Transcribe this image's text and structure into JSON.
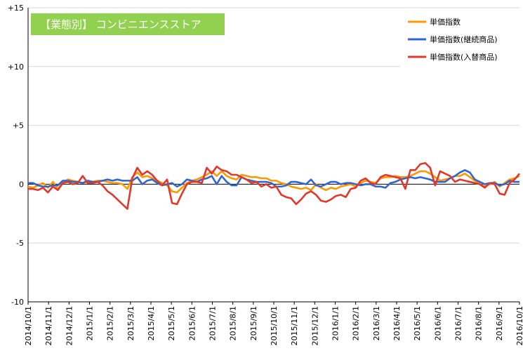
{
  "chart_data": {
    "type": "line",
    "title": "【業態別】 コンビニエンスストア",
    "title_bg": "#92d050",
    "xlabel": "",
    "ylabel": "",
    "ylim": [
      -10,
      15
    ],
    "yticks": [
      -10,
      -5,
      0,
      5,
      10,
      15
    ],
    "yticklabels": [
      "-10",
      "-5",
      "0",
      "+5",
      "+10",
      "+15"
    ],
    "grid": true,
    "legend_position": "top-right",
    "xticklabels": [
      "2014/10/1",
      "2014/11/1",
      "2014/12/1",
      "2015/1/1",
      "2015/2/1",
      "2015/3/1",
      "2015/4/1",
      "2015/5/1",
      "2015/6/1",
      "2015/7/1",
      "2015/8/1",
      "2015/9/1",
      "2015/10/1",
      "2015/11/1",
      "2015/12/1",
      "2016/1/1",
      "2016/2/1",
      "2016/3/1",
      "2016/4/1",
      "2016/5/1",
      "2016/6/1",
      "2016/7/1",
      "2016/8/1",
      "2016/9/1",
      "2016/10/1"
    ],
    "series": [
      {
        "name": "単価指数",
        "color": "#ff9900",
        "values": [
          -0.2,
          -0.3,
          -0.1,
          0.1,
          -0.3,
          0.2,
          -0.4,
          0.1,
          0.4,
          0.3,
          0.2,
          0.1,
          0.2,
          0.2,
          0.3,
          0.3,
          0.2,
          0.1,
          0.1,
          0.0,
          -0.4,
          0.6,
          1.0,
          0.6,
          0.7,
          0.5,
          0.3,
          0.1,
          -0.1,
          -0.6,
          -0.7,
          -0.3,
          0.1,
          0.3,
          0.4,
          0.6,
          0.8,
          1.1,
          0.7,
          1.1,
          0.7,
          0.5,
          0.4,
          0.8,
          0.7,
          0.6,
          0.6,
          0.5,
          0.5,
          0.3,
          0.3,
          0.1,
          0.0,
          -0.2,
          -0.3,
          -0.4,
          -0.3,
          -0.5,
          0.0,
          -0.3,
          -0.5,
          -0.3,
          -0.4,
          -0.2,
          -0.1,
          0.0,
          -0.2,
          0.1,
          0.3,
          0.2,
          0.1,
          0.5,
          0.6,
          0.6,
          0.7,
          0.6,
          0.6,
          0.7,
          0.9,
          1.1,
          1.1,
          0.9,
          0.6,
          0.3,
          0.4,
          0.5,
          0.7,
          0.7,
          0.9,
          0.6,
          0.3,
          0.0,
          -0.2,
          0.0,
          0.2,
          -0.2,
          0.1,
          0.4,
          0.5,
          0.7
        ]
      },
      {
        "name": "単価指数(継続商品)",
        "color": "#3366cc",
        "values": [
          0.1,
          0.1,
          -0.1,
          -0.2,
          -0.2,
          -0.1,
          -0.1,
          0.3,
          0.3,
          0.2,
          0.2,
          0.1,
          0.3,
          0.2,
          0.2,
          0.3,
          0.4,
          0.3,
          0.4,
          0.3,
          0.3,
          0.3,
          0.6,
          0.0,
          0.3,
          0.4,
          0.1,
          -0.1,
          0.0,
          0.1,
          -0.2,
          0.0,
          0.4,
          0.3,
          0.2,
          0.4,
          0.5,
          0.7,
          0.0,
          0.7,
          0.2,
          -0.1,
          -0.1,
          0.6,
          0.4,
          0.3,
          0.2,
          0.2,
          0.2,
          0.1,
          -0.2,
          -0.2,
          -0.1,
          0.2,
          0.2,
          0.1,
          0.0,
          0.4,
          -0.1,
          -0.2,
          0.0,
          0.2,
          0.2,
          0.0,
          0.1,
          0.1,
          0.0,
          -0.1,
          0.0,
          0.0,
          -0.2,
          -0.2,
          -0.3,
          0.1,
          0.2,
          0.4,
          0.5,
          0.6,
          0.5,
          0.6,
          0.5,
          0.4,
          0.2,
          0.2,
          0.2,
          0.5,
          0.7,
          1.0,
          1.2,
          1.0,
          0.4,
          0.2,
          0.0,
          0.1,
          0.1,
          -0.1,
          0.0,
          0.3,
          0.2,
          0.2
        ]
      },
      {
        "name": "単価指数(入替商品)",
        "color": "#e0382c",
        "values": [
          -0.4,
          -0.4,
          -0.5,
          -0.3,
          -0.7,
          -0.2,
          -0.5,
          0.1,
          0.2,
          0.0,
          0.1,
          0.7,
          0.1,
          0.1,
          0.2,
          -0.1,
          -0.6,
          -0.9,
          -1.3,
          -1.7,
          -2.1,
          0.5,
          1.4,
          0.8,
          1.1,
          0.8,
          0.3,
          -0.1,
          0.4,
          -1.6,
          -1.7,
          -0.8,
          0.0,
          0.2,
          0.2,
          0.1,
          1.4,
          0.9,
          1.5,
          1.2,
          1.1,
          0.8,
          0.8,
          0.6,
          0.4,
          0.1,
          0.2,
          -0.2,
          0.0,
          -0.3,
          -0.2,
          -0.9,
          -1.1,
          -1.2,
          -1.7,
          -1.3,
          -0.8,
          -0.6,
          -0.9,
          -1.4,
          -1.5,
          -1.3,
          -1.0,
          -0.9,
          -1.1,
          -0.4,
          -0.3,
          0.3,
          0.5,
          0.1,
          0.0,
          0.6,
          0.8,
          0.7,
          0.6,
          0.5,
          -0.4,
          1.2,
          1.2,
          1.7,
          1.8,
          1.4,
          -0.1,
          1.1,
          0.9,
          0.7,
          0.2,
          0.4,
          0.3,
          0.2,
          0.1,
          0.0,
          -0.3,
          0.1,
          0.0,
          -0.8,
          -0.9,
          0.1,
          0.4,
          0.9
        ]
      }
    ]
  }
}
